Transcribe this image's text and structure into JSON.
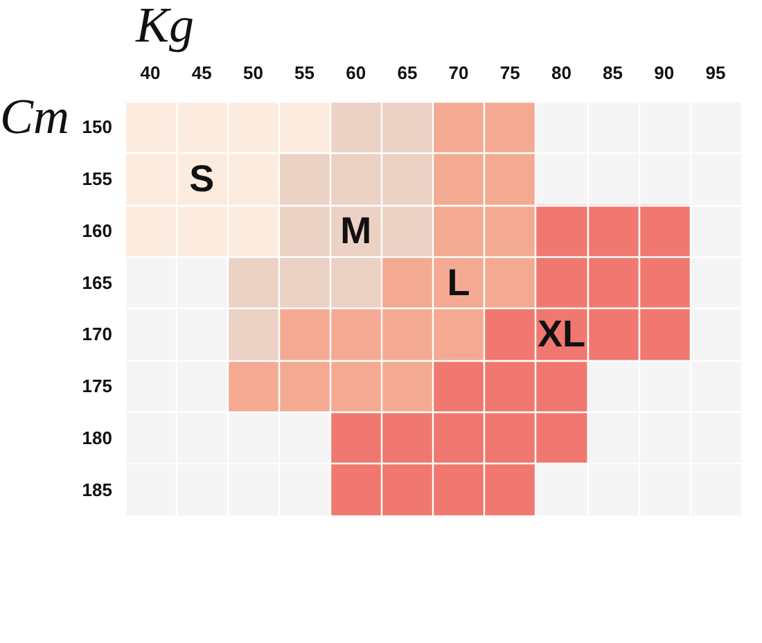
{
  "chart_data": {
    "type": "scatter",
    "xlabel": "Kg",
    "ylabel": "Cm",
    "marker": "square",
    "series": [
      {
        "color": "#fcebdf",
        "x": [
          40,
          45,
          50,
          55,
          40,
          45,
          50,
          40,
          45,
          50
        ],
        "values": [
          150,
          150,
          150,
          150,
          155,
          155,
          155,
          160,
          160,
          160
        ]
      },
      {
        "color": "#ecd1c5",
        "x": [
          60,
          65,
          55,
          60,
          65,
          55,
          60,
          65,
          50,
          55,
          60,
          50
        ],
        "values": [
          150,
          150,
          155,
          155,
          155,
          160,
          160,
          160,
          165,
          165,
          165,
          170
        ]
      },
      {
        "color": "#f4aa92",
        "x": [
          70,
          75,
          70,
          75,
          70,
          75,
          65,
          70,
          75,
          55,
          60,
          65,
          70,
          50,
          55,
          60,
          65
        ],
        "values": [
          150,
          150,
          155,
          155,
          160,
          160,
          165,
          165,
          165,
          170,
          170,
          170,
          170,
          175,
          175,
          175,
          175
        ]
      },
      {
        "color": "#f07870",
        "x": [
          80,
          85,
          90,
          80,
          85,
          90,
          75,
          80,
          85,
          90,
          70,
          75,
          80,
          60,
          65,
          70,
          75,
          80,
          60,
          65,
          70,
          75
        ],
        "values": [
          160,
          160,
          160,
          165,
          165,
          165,
          170,
          170,
          170,
          170,
          175,
          175,
          175,
          180,
          180,
          180,
          180,
          180,
          185,
          185,
          185,
          185
        ]
      }
    ],
    "xlim": [
      37.5,
      97.5
    ],
    "xticks": [
      40,
      45,
      50,
      55,
      60,
      65,
      70,
      75,
      80,
      85,
      90,
      95
    ],
    "ylim": [
      187.5,
      147.5
    ],
    "yticks": [
      150,
      155,
      160,
      165,
      170,
      175,
      180,
      185
    ],
    "annotations": [
      {
        "text": "S",
        "x": 45,
        "y": 155
      },
      {
        "text": "M",
        "x": 60,
        "y": 160
      },
      {
        "text": "L",
        "x": 70,
        "y": 165
      },
      {
        "text": "XL",
        "x": 80,
        "y": 170
      }
    ],
    "grid": true
  }
}
